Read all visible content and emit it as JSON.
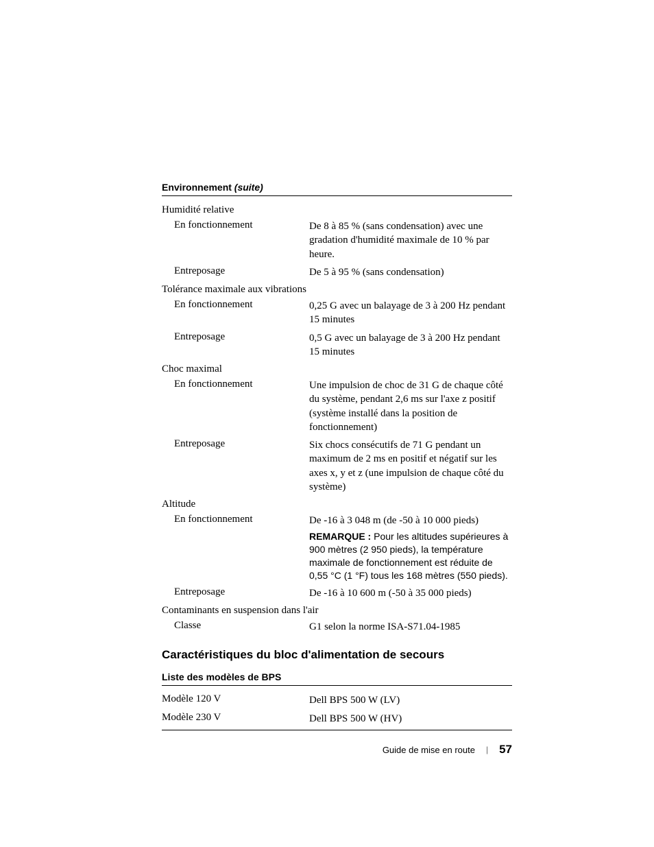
{
  "header": {
    "title": "Environnement",
    "suffix": "(suite)"
  },
  "env": {
    "humidity": {
      "label": "Humidité relative",
      "operating": {
        "label": "En fonctionnement",
        "value": "De 8 à 85 % (sans condensation) avec une gradation d'humidité maximale de 10 % par heure."
      },
      "storage": {
        "label": "Entreposage",
        "value": "De 5 à 95 % (sans condensation)"
      }
    },
    "vibration": {
      "label": "Tolérance maximale aux vibrations",
      "operating": {
        "label": "En fonctionnement",
        "value": "0,25 G avec un balayage de 3 à 200 Hz pendant 15 minutes"
      },
      "storage": {
        "label": "Entreposage",
        "value": "0,5 G avec un balayage de 3 à 200 Hz pendant 15 minutes"
      }
    },
    "shock": {
      "label": "Choc maximal",
      "operating": {
        "label": "En fonctionnement",
        "value": "Une impulsion de choc de 31 G de chaque côté du système, pendant 2,6 ms sur l'axe z positif (système installé dans la position de fonctionnement)"
      },
      "storage": {
        "label": "Entreposage",
        "value": "Six chocs consécutifs de 71 G pendant un maximum de 2 ms en positif et négatif sur les axes x, y et z (une impulsion de chaque côté du système)"
      }
    },
    "altitude": {
      "label": "Altitude",
      "operating": {
        "label": "En fonctionnement",
        "value": "De -16 à 3 048 m (de -50 à 10 000 pieds)",
        "note_prefix": "REMARQUE :",
        "note": " Pour les altitudes supérieures à 900 mètres (2 950 pieds), la température maximale de fonctionnement est réduite de 0,55 °C (1 °F) tous les 168 mètres (550 pieds)."
      },
      "storage": {
        "label": "Entreposage",
        "value": "De -16 à 10 600 m (-50 à 35 000 pieds)"
      }
    },
    "airborne": {
      "label": "Contaminants en suspension dans l'air",
      "class": {
        "label": "Classe",
        "value": "G1 selon la norme ISA-S71.04-1985"
      }
    }
  },
  "bps": {
    "heading": "Caractéristiques du bloc d'alimentation de secours",
    "subheading": "Liste des modèles de BPS",
    "m120": {
      "label": "Modèle 120 V",
      "value": "Dell BPS 500 W (LV)"
    },
    "m230": {
      "label": "Modèle 230 V",
      "value": "Dell BPS 500 W (HV)"
    }
  },
  "footer": {
    "doc": "Guide de mise en route",
    "page": "57"
  }
}
